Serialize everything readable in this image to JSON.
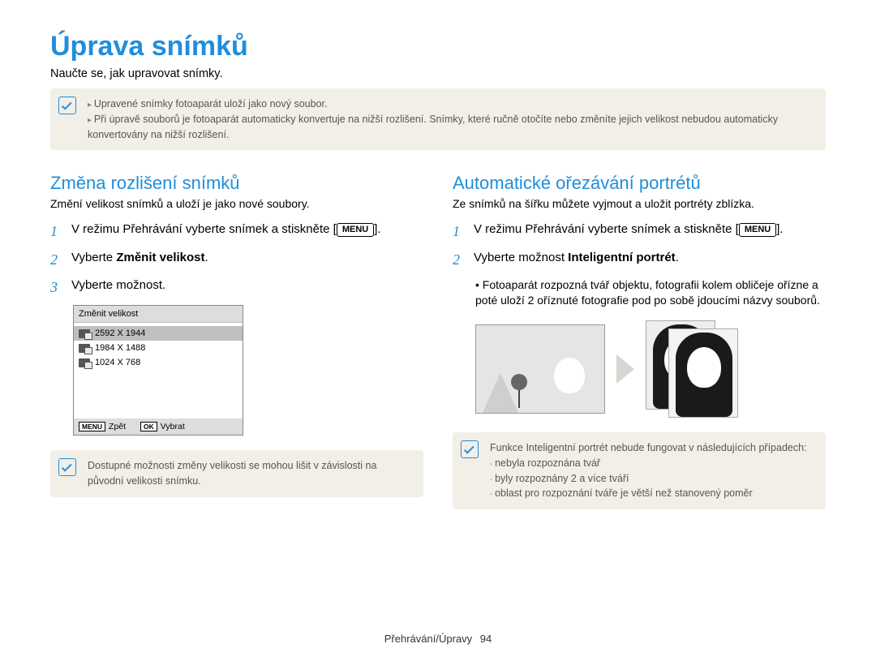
{
  "title": "Úprava snímků",
  "subtitle": "Naučte se, jak upravovat snímky.",
  "top_note": {
    "items": [
      "Upravené snímky fotoaparát uloží jako nový soubor.",
      "Při úpravě souborů je fotoaparát automaticky konvertuje na nižší rozlišení. Snímky, které ručně otočíte nebo změníte jejich velikost nebudou automaticky konvertovány na nižší rozlišení."
    ]
  },
  "menu_button_label": "MENU",
  "left": {
    "heading": "Změna rozlišení snímků",
    "intro": "Změní velikost snímků a uloží je jako nové soubory.",
    "step1_prefix": "V režimu Přehrávání vyberte snímek a stiskněte [",
    "step1_suffix": "].",
    "step2_prefix": "Vyberte ",
    "step2_bold": "Změnit velikost",
    "step2_suffix": ".",
    "step3": "Vyberte možnost.",
    "cam": {
      "title": "Změnit velikost",
      "options": [
        "2592 X 1944",
        "1984 X 1488",
        "1024 X 768"
      ],
      "selected_index": 0,
      "footer_back_btn": "MENU",
      "footer_back": "Zpět",
      "footer_select_btn": "OK",
      "footer_select": "Vybrat"
    },
    "note": "Dostupné možnosti změny velikosti se mohou lišit v závislosti na původní velikosti snímku."
  },
  "right": {
    "heading": "Automatické ořezávání portrétů",
    "intro": "Ze snímků na šířku můžete vyjmout a uložit portréty zblízka.",
    "step1_prefix": "V režimu Přehrávání vyberte snímek a stiskněte [",
    "step1_suffix": "].",
    "step2_prefix": "Vyberte možnost ",
    "step2_bold": "Inteligentní portrét",
    "step2_suffix": ".",
    "bullet": "Fotoaparát rozpozná tvář objektu, fotografii kolem obličeje ořízne a poté uloží 2 oříznuté fotografie pod po sobě jdoucími názvy souborů.",
    "note_intro": "Funkce Inteligentní portrét nebude fungovat v následujících případech:",
    "note_items": [
      "nebyla rozpoznána tvář",
      "byly rozpoznány 2 a více tváří",
      "oblast pro rozpoznání tváře je větší než stanovený poměr"
    ]
  },
  "footer": {
    "section": "Přehrávání/Úpravy",
    "page": "94"
  },
  "colors": {
    "accent": "#1f8edb",
    "note_bg": "#f2efe7",
    "text": "#000000",
    "muted": "#555555"
  }
}
